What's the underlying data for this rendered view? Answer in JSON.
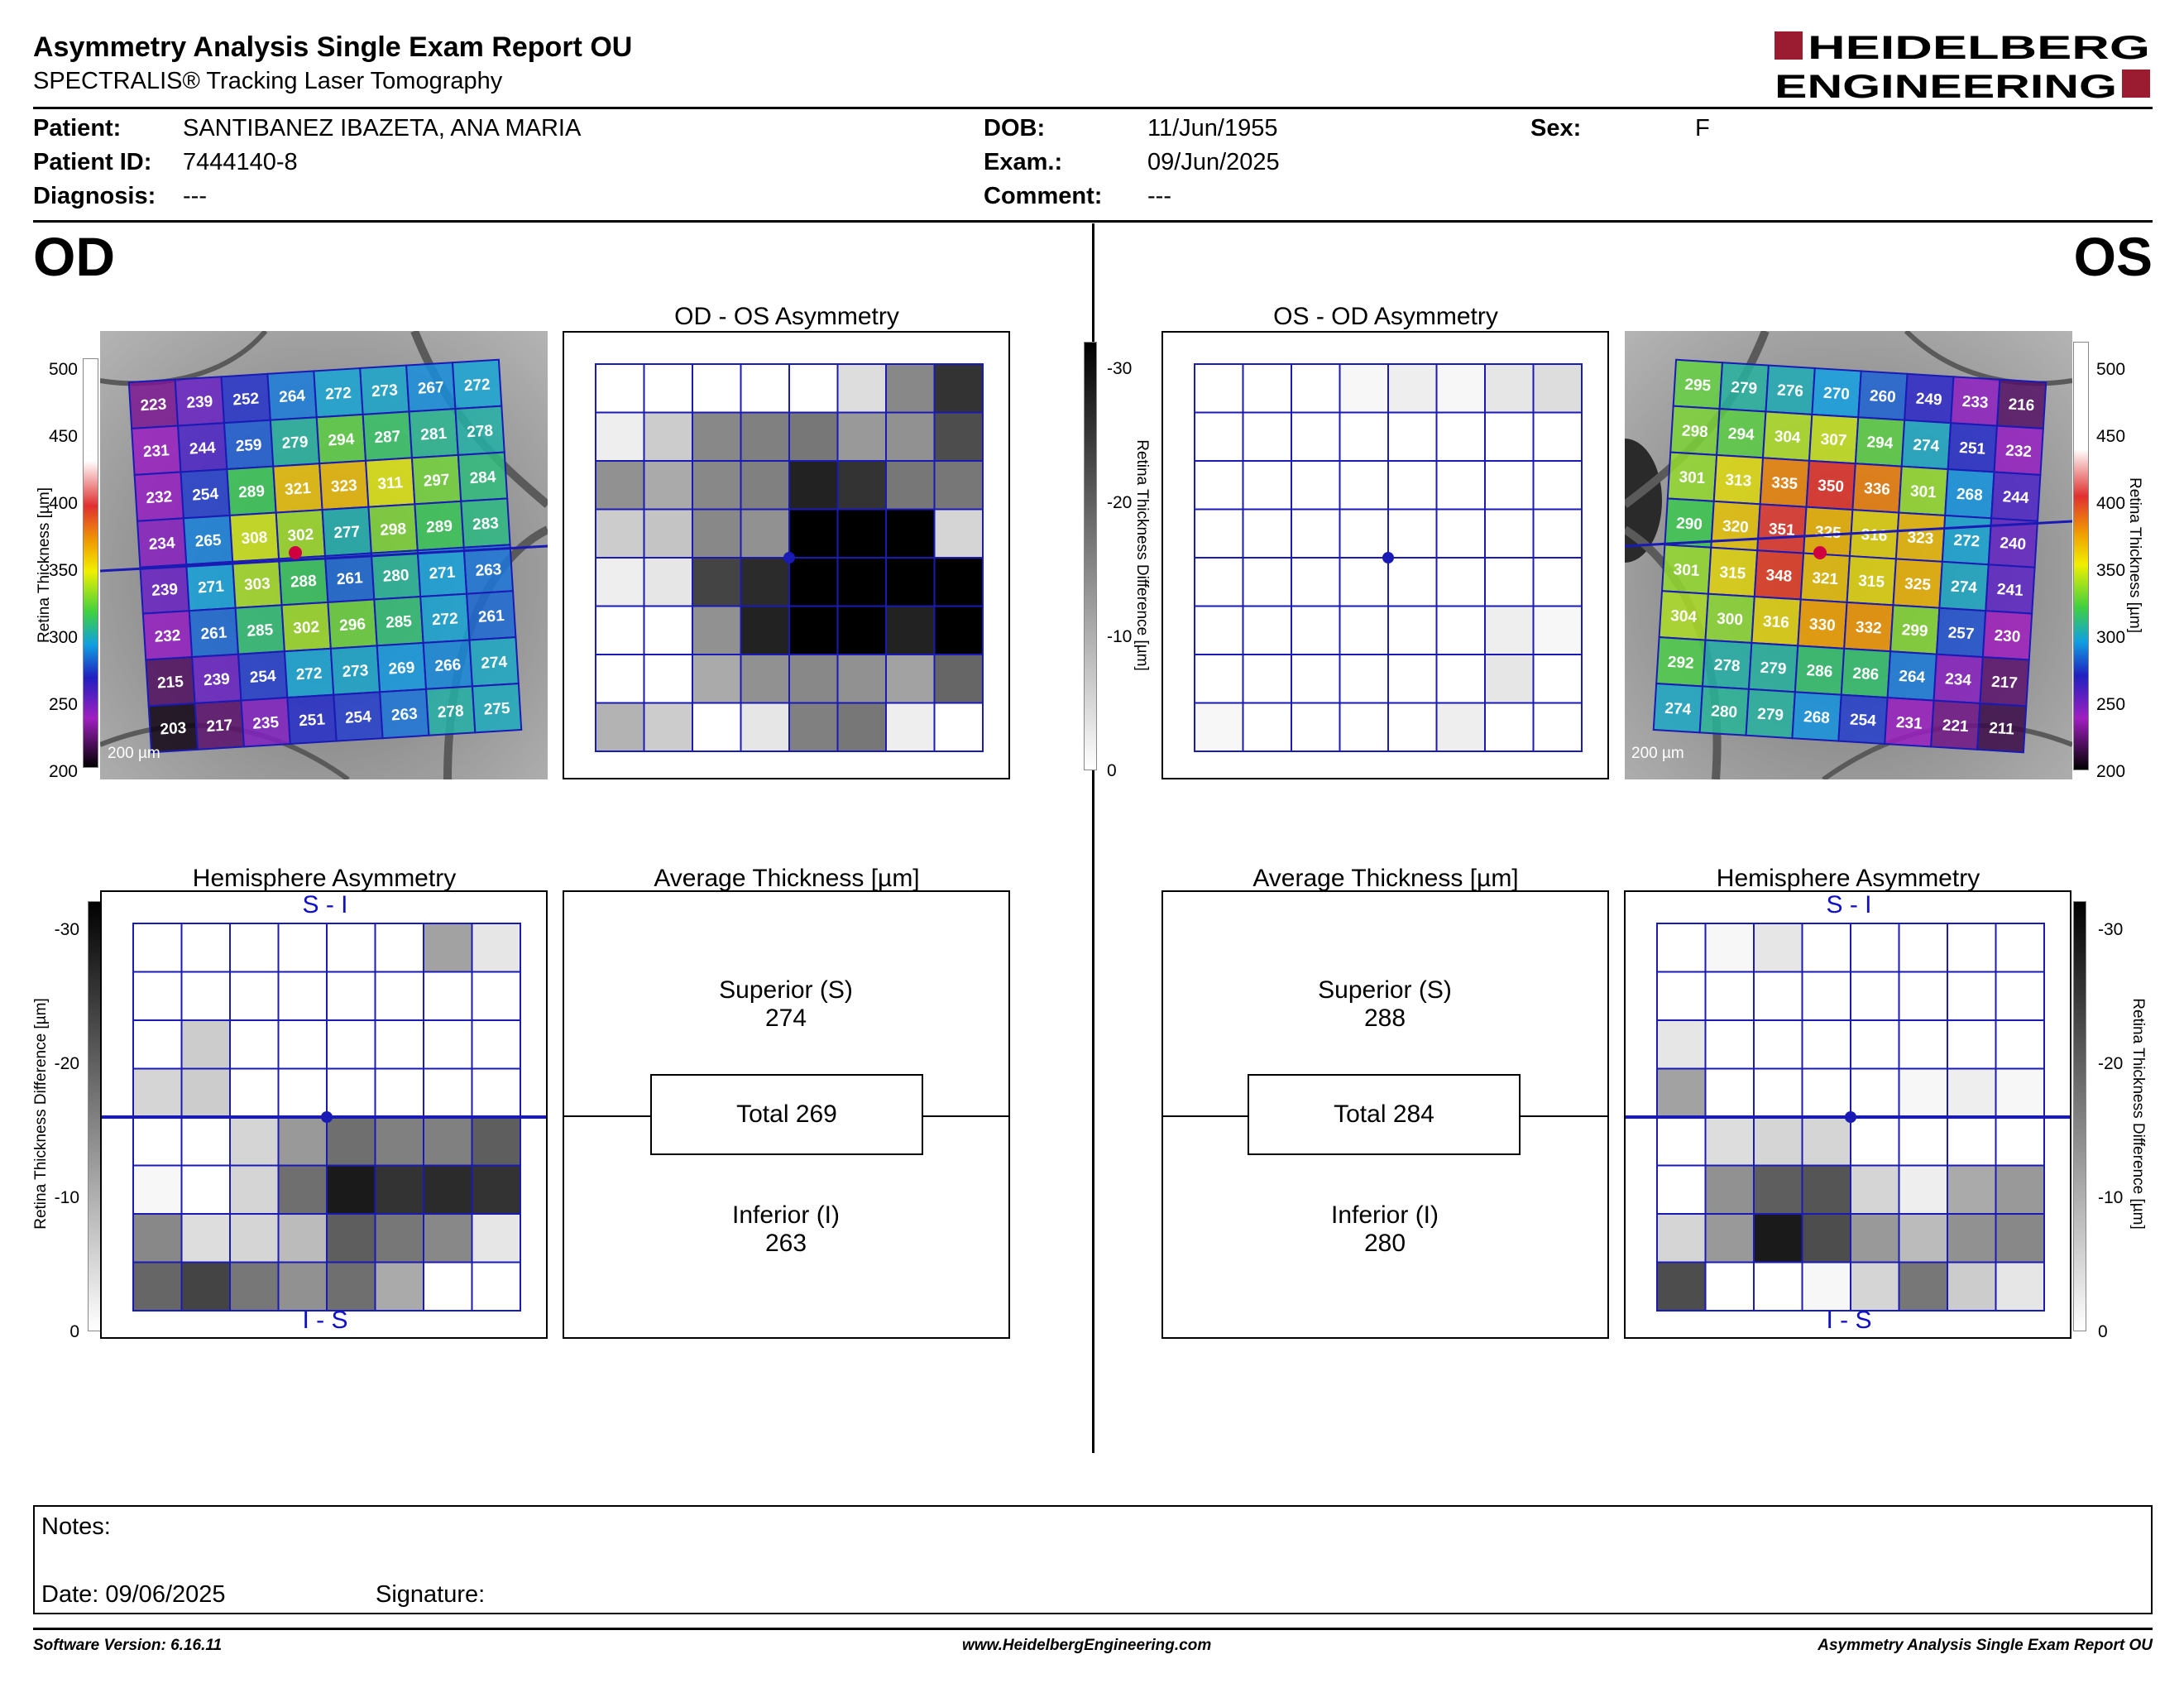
{
  "report": {
    "title": "Asymmetry Analysis Single Exam Report OU",
    "subtitle": "SPECTRALIS® Tracking Laser Tomography",
    "logo_line1": "HEIDELBERG",
    "logo_line2": "ENGINEERING"
  },
  "patient": {
    "patient_label": "Patient:",
    "patient_value": "SANTIBANEZ IBAZETA, ANA MARIA",
    "id_label": "Patient ID:",
    "id_value": "7444140-8",
    "diagnosis_label": "Diagnosis:",
    "diagnosis_value": "---",
    "dob_label": "DOB:",
    "dob_value": "11/Jun/1955",
    "exam_label": "Exam.:",
    "exam_value": "09/Jun/2025",
    "comment_label": "Comment:",
    "comment_value": "---",
    "sex_label": "Sex:",
    "sex_value": "F"
  },
  "od": {
    "eye": "OD",
    "asym_title": "OD - OS Asymmetry",
    "hemi_title": "Hemisphere Asymmetry",
    "avg_title": "Average Thickness [µm]",
    "superior_label": "Superior (S)",
    "superior_value": "274",
    "total_label": "Total 269",
    "inferior_label": "Inferior (I)",
    "inferior_value": "263",
    "scale_bar": "200 µm",
    "hemi_top": "S - I",
    "hemi_bottom": "I - S",
    "thickness_grid": [
      [
        223,
        239,
        252,
        264,
        272,
        273,
        267,
        272
      ],
      [
        231,
        244,
        259,
        279,
        294,
        287,
        281,
        278
      ],
      [
        232,
        254,
        289,
        321,
        323,
        311,
        297,
        284
      ],
      [
        234,
        265,
        308,
        302,
        277,
        298,
        289,
        283
      ],
      [
        239,
        271,
        303,
        288,
        261,
        280,
        271,
        263
      ],
      [
        232,
        261,
        285,
        302,
        296,
        285,
        272,
        261
      ],
      [
        215,
        239,
        254,
        272,
        273,
        269,
        266,
        274
      ],
      [
        203,
        217,
        235,
        251,
        254,
        263,
        278,
        275
      ]
    ],
    "asym_grid": [
      [
        0,
        0,
        0,
        0,
        0,
        4,
        14,
        24
      ],
      [
        2,
        6,
        14,
        15,
        16,
        12,
        13,
        21
      ],
      [
        13,
        10,
        14,
        15,
        26,
        24,
        16,
        16
      ],
      [
        6,
        7,
        14,
        13,
        30,
        30,
        30,
        5
      ],
      [
        2,
        3,
        22,
        25,
        30,
        30,
        30,
        30
      ],
      [
        0,
        0,
        13,
        26,
        30,
        30,
        26,
        30
      ],
      [
        0,
        0,
        10,
        13,
        14,
        13,
        11,
        18
      ],
      [
        9,
        6,
        0,
        3,
        15,
        16,
        2,
        0
      ]
    ],
    "hemi_grid": [
      [
        0,
        0,
        0,
        0,
        0,
        0,
        11,
        3
      ],
      [
        0,
        0,
        0,
        0,
        0,
        0,
        0,
        0
      ],
      [
        0,
        6,
        0,
        0,
        0,
        0,
        0,
        0
      ],
      [
        5,
        6,
        0,
        0,
        0,
        0,
        0,
        0
      ],
      [
        0,
        0,
        5,
        12,
        17,
        15,
        15,
        19
      ],
      [
        1,
        0,
        5,
        17,
        27,
        24,
        25,
        24
      ],
      [
        14,
        4,
        5,
        8,
        19,
        16,
        14,
        3
      ],
      [
        18,
        22,
        16,
        13,
        17,
        10,
        0,
        0
      ]
    ]
  },
  "os": {
    "eye": "OS",
    "asym_title": "OS - OD Asymmetry",
    "hemi_title": "Hemisphere Asymmetry",
    "avg_title": "Average Thickness [µm]",
    "superior_label": "Superior (S)",
    "superior_value": "288",
    "total_label": "Total 284",
    "inferior_label": "Inferior (I)",
    "inferior_value": "280",
    "scale_bar": "200 µm",
    "hemi_top": "S - I",
    "hemi_bottom": "I - S",
    "thickness_grid": [
      [
        295,
        279,
        276,
        270,
        260,
        249,
        233,
        216
      ],
      [
        298,
        294,
        304,
        307,
        294,
        274,
        251,
        232
      ],
      [
        301,
        313,
        335,
        350,
        336,
        301,
        268,
        244
      ],
      [
        290,
        320,
        351,
        325,
        316,
        323,
        272,
        240
      ],
      [
        301,
        315,
        348,
        321,
        315,
        325,
        274,
        241
      ],
      [
        304,
        300,
        316,
        330,
        332,
        299,
        257,
        230
      ],
      [
        292,
        278,
        279,
        286,
        286,
        264,
        234,
        217
      ],
      [
        274,
        280,
        279,
        268,
        254,
        231,
        221,
        211
      ]
    ],
    "asym_grid": [
      [
        0,
        0,
        0,
        1,
        2,
        1,
        3,
        4
      ],
      [
        0,
        0,
        0,
        0,
        0,
        0,
        0,
        0
      ],
      [
        0,
        0,
        0,
        0,
        0,
        0,
        0,
        0
      ],
      [
        0,
        0,
        0,
        0,
        0,
        0,
        0,
        0
      ],
      [
        0,
        0,
        0,
        0,
        0,
        0,
        0,
        0
      ],
      [
        0,
        0,
        0,
        0,
        0,
        0,
        2,
        1
      ],
      [
        0,
        0,
        0,
        0,
        0,
        0,
        3,
        0
      ],
      [
        1,
        0,
        0,
        0,
        0,
        2,
        0,
        0
      ]
    ],
    "hemi_grid": [
      [
        0,
        1,
        3,
        0,
        0,
        0,
        0,
        0
      ],
      [
        0,
        0,
        0,
        0,
        0,
        0,
        0,
        0
      ],
      [
        3,
        0,
        0,
        0,
        0,
        0,
        0,
        0
      ],
      [
        11,
        0,
        0,
        0,
        0,
        1,
        2,
        1
      ],
      [
        0,
        4,
        5,
        5,
        0,
        0,
        0,
        0
      ],
      [
        0,
        13,
        19,
        20,
        5,
        2,
        10,
        12
      ],
      [
        5,
        12,
        27,
        21,
        12,
        8,
        13,
        14
      ],
      [
        21,
        0,
        0,
        1,
        5,
        16,
        6,
        3
      ]
    ]
  },
  "scales": {
    "thickness_ticks": [
      "500",
      "450",
      "400",
      "350",
      "300",
      "250",
      "200"
    ],
    "thickness_label": "Retina Thickness [µm]",
    "diff_ticks": [
      "-30",
      "-20",
      "-10",
      "0"
    ],
    "diff_label": "Retina Thickness Difference [µm]"
  },
  "notes": {
    "notes_label": "Notes:",
    "date_label": "Date: 09/06/2025",
    "signature_label": "Signature:"
  },
  "footer": {
    "software": "Software Version: 6.16.11",
    "website": "www.HeidelbergEngineering.com",
    "report": "Asymmetry Analysis Single Exam Report OU"
  },
  "colors": {
    "grid_blue": "#1a1ab4",
    "logo_red": "#9b1b30"
  }
}
